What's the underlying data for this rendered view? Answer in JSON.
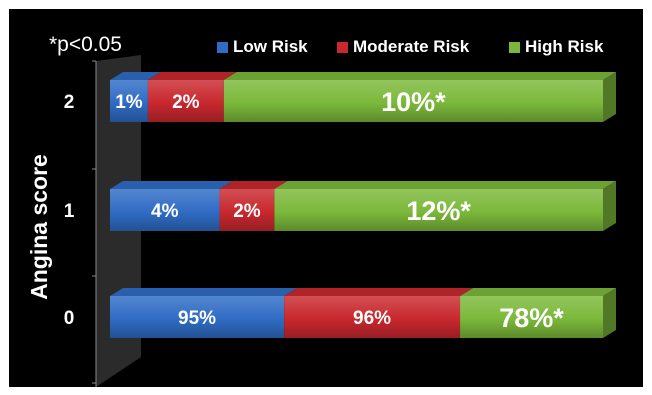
{
  "chart_data": {
    "type": "bar",
    "stacked": true,
    "orientation": "horizontal",
    "ylabel": "Angina score",
    "categories": [
      "2",
      "1",
      "0"
    ],
    "series": [
      {
        "name": "Low Risk",
        "color": "#2f6cc4",
        "values": [
          1,
          4,
          95
        ],
        "labels": [
          "1%",
          "4%",
          "95%"
        ]
      },
      {
        "name": "Moderate Risk",
        "color": "#c8282e",
        "values": [
          2,
          2,
          96
        ],
        "labels": [
          "2%",
          "2%",
          "96%"
        ]
      },
      {
        "name": "High Risk",
        "color": "#7bb83a",
        "values": [
          10,
          12,
          78
        ],
        "labels": [
          "10%*",
          "12%*",
          "78%*"
        ]
      }
    ],
    "note": "*p<0.05",
    "legend_position": "top",
    "grid": false
  }
}
